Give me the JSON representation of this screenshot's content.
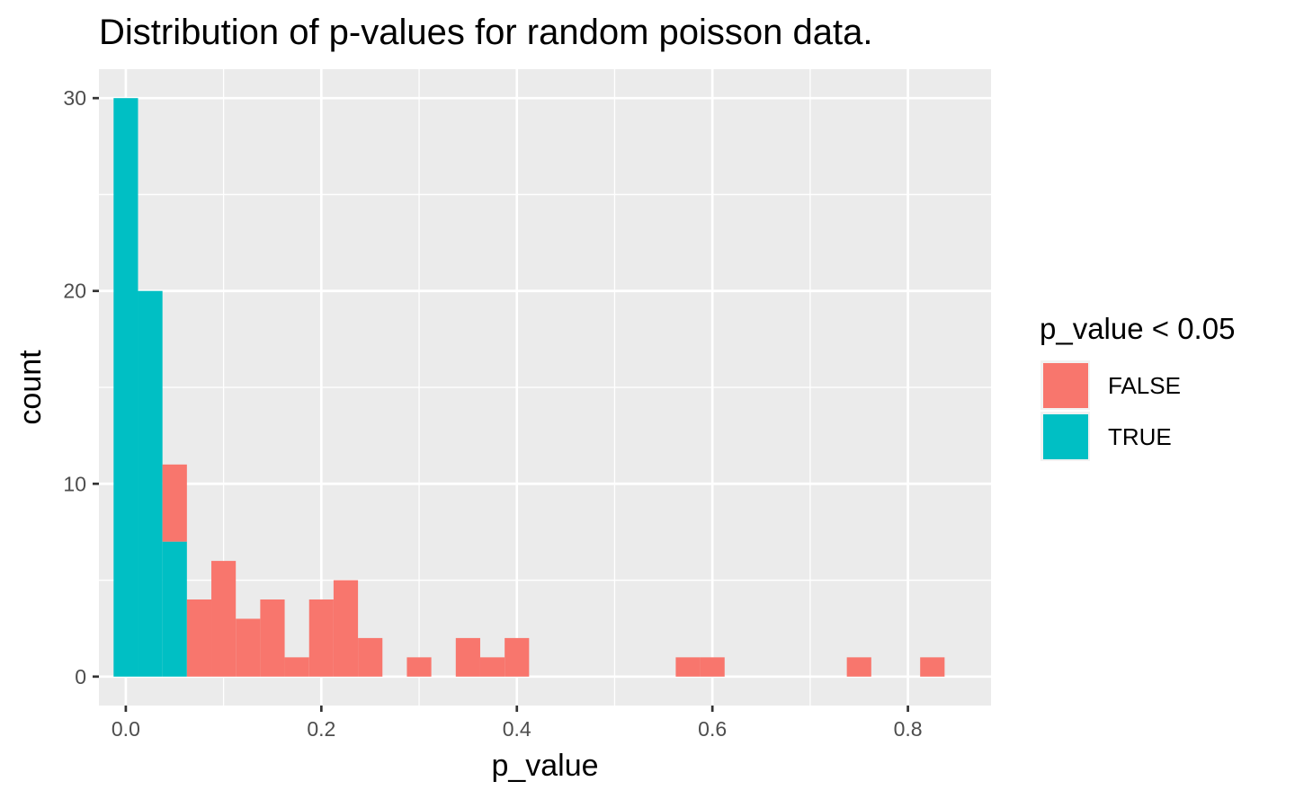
{
  "chart_data": {
    "type": "bar",
    "subtype": "stacked-histogram",
    "title": "Distribution of p-values for random poisson data.",
    "xlabel": "p_value",
    "ylabel": "count",
    "xlim": [
      -0.0275,
      0.885
    ],
    "ylim": [
      -1.5,
      31.5
    ],
    "x_ticks": [
      0.0,
      0.2,
      0.4,
      0.6,
      0.8
    ],
    "x_tick_labels": [
      "0.0",
      "0.2",
      "0.4",
      "0.6",
      "0.8"
    ],
    "y_ticks": [
      0,
      10,
      20,
      30
    ],
    "y_tick_labels": [
      "0",
      "10",
      "20",
      "30"
    ],
    "bin_width": 0.025,
    "bin_centers": [
      0.0,
      0.025,
      0.05,
      0.075,
      0.1,
      0.125,
      0.15,
      0.175,
      0.2,
      0.225,
      0.25,
      0.3,
      0.35,
      0.375,
      0.4,
      0.575,
      0.6,
      0.75,
      0.825
    ],
    "series": [
      {
        "name": "TRUE",
        "color": "#00BFC4",
        "values": [
          30,
          20,
          7,
          0,
          0,
          0,
          0,
          0,
          0,
          0,
          0,
          0,
          0,
          0,
          0,
          0,
          0,
          0,
          0
        ]
      },
      {
        "name": "FALSE",
        "color": "#F8766D",
        "values": [
          0,
          0,
          4,
          4,
          6,
          3,
          4,
          1,
          4,
          5,
          2,
          1,
          2,
          1,
          2,
          1,
          1,
          1,
          1
        ]
      }
    ],
    "grid": true,
    "panel_background": "#EBEBEB",
    "legend": {
      "title": "p_value < 0.05",
      "position": "right",
      "entries": [
        {
          "label": "FALSE",
          "color": "#F8766D"
        },
        {
          "label": "TRUE",
          "color": "#00BFC4"
        }
      ]
    }
  }
}
